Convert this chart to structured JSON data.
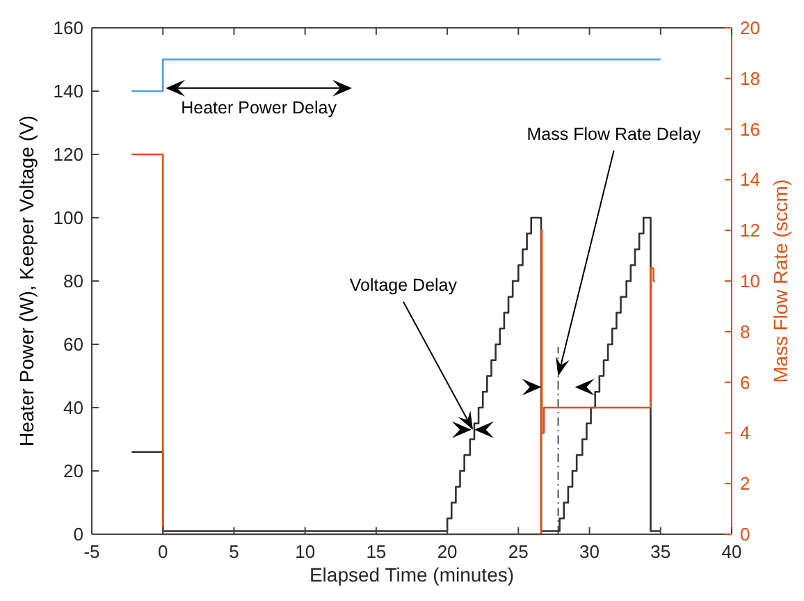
{
  "chart_data": {
    "type": "step",
    "xlabel": "Elapsed Time (minutes)",
    "ylabel": "Heater Power (W), Keeper Voltage (V)",
    "y2label": "Mass Flow Rate (sccm)",
    "xlim": [
      -5,
      40
    ],
    "xticks": [
      -5,
      0,
      5,
      10,
      15,
      20,
      25,
      30,
      35,
      40
    ],
    "ylim": [
      0,
      160
    ],
    "yticks": [
      0,
      20,
      40,
      60,
      80,
      100,
      120,
      140,
      160
    ],
    "y2lim": [
      0,
      20
    ],
    "y2ticks": [
      0,
      2,
      4,
      6,
      8,
      10,
      12,
      14,
      16,
      18,
      20
    ],
    "grid": false,
    "series": [
      {
        "color": "#4f9fe0",
        "x": [
          -2.2,
          0,
          35
        ],
        "values": [
          140,
          150,
          150
        ]
      },
      {
        "color": "#303030",
        "x": [
          -2.2,
          0,
          20,
          20.3,
          20.6,
          20.9,
          21.2,
          21.6,
          21.9,
          22.2,
          22.5,
          22.8,
          23.1,
          23.4,
          23.7,
          24,
          24.3,
          24.6,
          25,
          25.3,
          25.6,
          25.9,
          26.2,
          26.6,
          27.9,
          28.2,
          28.5,
          28.8,
          29.1,
          29.5,
          29.8,
          30.1,
          30.4,
          30.7,
          31,
          31.3,
          31.6,
          31.9,
          32.2,
          32.6,
          32.9,
          33.2,
          33.5,
          33.8,
          34.3,
          35
        ],
        "values": [
          26,
          1,
          5,
          10,
          15,
          20,
          25,
          30,
          35,
          40,
          45,
          50,
          55,
          60,
          65,
          70,
          75,
          80,
          85,
          90,
          95,
          100,
          100,
          1,
          5,
          10,
          15,
          20,
          25,
          30,
          35,
          40,
          45,
          50,
          55,
          60,
          65,
          70,
          75,
          80,
          85,
          90,
          95,
          100,
          1,
          1
        ]
      },
      {
        "color": "#d95319",
        "axis": "y2",
        "x": [
          -2.2,
          0,
          26.6,
          26.65,
          26.8,
          34.3,
          34.5,
          34.6
        ],
        "values": [
          15,
          0,
          12,
          4,
          5,
          10.5,
          10,
          10
        ]
      }
    ],
    "ref_lines": [
      {
        "axis": "x",
        "value": 27.8,
        "line_style": "dashed",
        "color": "#505050"
      }
    ],
    "annotations": [
      "Heater Power Delay",
      {
        "text": "Voltage Delay",
        "x": 21.8,
        "y": 33
      },
      {
        "text": "Mass Flow Rate Delay",
        "x": 27.8,
        "y": 50
      }
    ]
  }
}
